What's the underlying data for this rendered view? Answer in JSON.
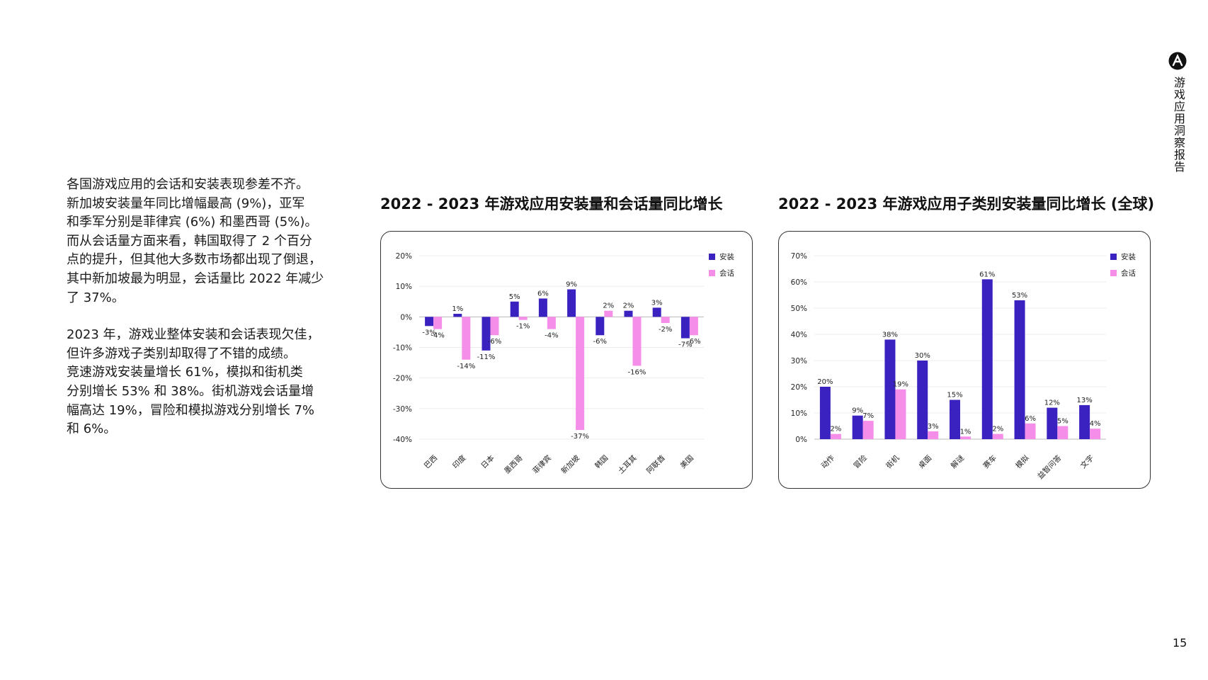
{
  "brand": {
    "logo": "logo-icon",
    "side_title": "游戏应用洞察报告",
    "page_number": "15"
  },
  "body": {
    "paragraphs": [
      "各国游戏应用的会话和安装表现参差不齐。\n新加坡安装量年同比增幅最高 (9%)，亚军\n和季军分别是菲律宾 (6%) 和墨西哥 (5%)。\n而从会话量方面来看，韩国取得了 2 个百分\n点的提升，但其他大多数市场都出现了倒退，\n其中新加坡最为明显，会话量比 2022 年减少\n了 37%。",
      "2023 年，游戏业整体安装和会话表现欠佳，\n但许多游戏子类别却取得了不错的成绩。\n竞速游戏安装量增长 61%，模拟和街机类\n分别增长 53% 和 38%。街机游戏会话量增\n幅高达 19%，冒险和模拟游戏分别增长 7%\n和 6%。"
    ]
  },
  "chart_data": [
    {
      "type": "bar",
      "title": "2022 - 2023 年游戏应用安装量和会话量同比增长",
      "categories": [
        "巴西",
        "印度",
        "日本",
        "墨西哥",
        "菲律宾",
        "新加坡",
        "韩国",
        "土耳其",
        "阿联酋",
        "美国"
      ],
      "series": [
        {
          "name": "安装",
          "color": "#3a22c0",
          "values": [
            -3,
            1,
            -11,
            5,
            6,
            9,
            -6,
            2,
            3,
            -7
          ]
        },
        {
          "name": "会话",
          "color": "#f58ee8",
          "values": [
            -4,
            -14,
            -6,
            -1,
            -4,
            -37,
            2,
            -16,
            -2,
            -6
          ]
        }
      ],
      "value_suffix": "%",
      "yticks": [
        "20%",
        "10%",
        "0%",
        "-10%",
        "-20%",
        "-30%",
        "-40%"
      ],
      "ylim": [
        -40,
        20
      ],
      "grid": true,
      "legend": "top-right"
    },
    {
      "type": "bar",
      "title": "2022 - 2023 年游戏应用子类别安装量同比增长 (全球)",
      "categories": [
        "动作",
        "冒险",
        "街机",
        "桌面",
        "解谜",
        "赛车",
        "模拟",
        "益智问答",
        "文字"
      ],
      "series": [
        {
          "name": "安装",
          "color": "#3a22c0",
          "values": [
            20,
            9,
            38,
            30,
            15,
            61,
            53,
            12,
            13
          ]
        },
        {
          "name": "会话",
          "color": "#f58ee8",
          "values": [
            2,
            7,
            19,
            3,
            1,
            2,
            6,
            5,
            4
          ]
        }
      ],
      "value_suffix": "%",
      "yticks": [
        "70%",
        "60%",
        "50%",
        "40%",
        "30%",
        "20%",
        "10%",
        "0%"
      ],
      "ylim": [
        0,
        70
      ],
      "grid": true,
      "legend": "top-right"
    }
  ]
}
